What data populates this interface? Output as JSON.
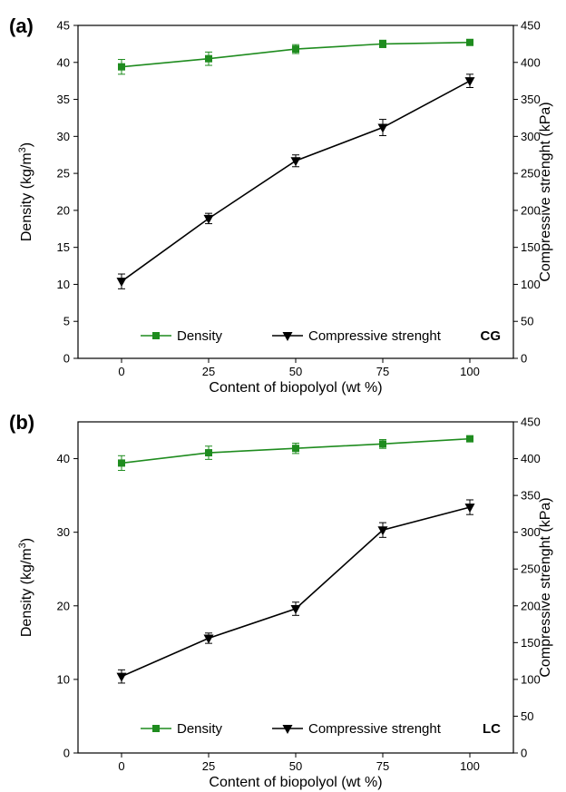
{
  "chart_data": [
    {
      "type": "line",
      "panel_label": "(a)",
      "tag": "CG",
      "x": [
        0,
        25,
        50,
        75,
        100
      ],
      "xlabel": "Content of biopolyol (wt %)",
      "ylabel_left": "Density (kg/m3)",
      "ylabel_right": "Compressive strenght (kPa)",
      "xlim": [
        -12.5,
        112.5
      ],
      "ylim_left": [
        0,
        45
      ],
      "ylim_right": [
        0,
        450
      ],
      "yticks_left": [
        0,
        5,
        10,
        15,
        20,
        25,
        30,
        35,
        40,
        45
      ],
      "yticks_right": [
        0,
        50,
        100,
        150,
        200,
        250,
        300,
        350,
        400,
        450
      ],
      "legend_position": "bottom",
      "series": [
        {
          "name": "Density",
          "axis": "left",
          "color": "#1f8c1f",
          "marker": "square",
          "values": [
            39.4,
            40.5,
            41.8,
            42.5,
            42.7
          ],
          "errors": [
            1.0,
            0.9,
            0.6,
            0.5,
            0.3
          ]
        },
        {
          "name": "Compressive strenght",
          "axis": "right",
          "color": "#000000",
          "marker": "triangle-down",
          "values": [
            104,
            189,
            267,
            312,
            375
          ],
          "errors": [
            10,
            7,
            8,
            11,
            9
          ]
        }
      ]
    },
    {
      "type": "line",
      "panel_label": "(b)",
      "tag": "LC",
      "x": [
        0,
        25,
        50,
        75,
        100
      ],
      "xlabel": "Content of biopolyol (wt %)",
      "ylabel_left": "Density (kg/m3)",
      "ylabel_right": "Compressive strenght (kPa)",
      "xlim": [
        -12.5,
        112.5
      ],
      "ylim_left": [
        0,
        45
      ],
      "ylim_right": [
        0,
        450
      ],
      "yticks_left": [
        0,
        10,
        20,
        30,
        40
      ],
      "yticks_right": [
        0,
        50,
        100,
        150,
        200,
        250,
        300,
        350,
        400,
        450
      ],
      "legend_position": "bottom",
      "series": [
        {
          "name": "Density",
          "axis": "left",
          "color": "#1f8c1f",
          "marker": "square",
          "values": [
            39.4,
            40.8,
            41.4,
            42.0,
            42.7
          ],
          "errors": [
            1.0,
            0.9,
            0.7,
            0.6,
            0.3
          ]
        },
        {
          "name": "Compressive strenght",
          "axis": "right",
          "color": "#000000",
          "marker": "triangle-down",
          "values": [
            104,
            156,
            196,
            303,
            334
          ],
          "errors": [
            9,
            7,
            9,
            10,
            10
          ]
        }
      ]
    }
  ]
}
